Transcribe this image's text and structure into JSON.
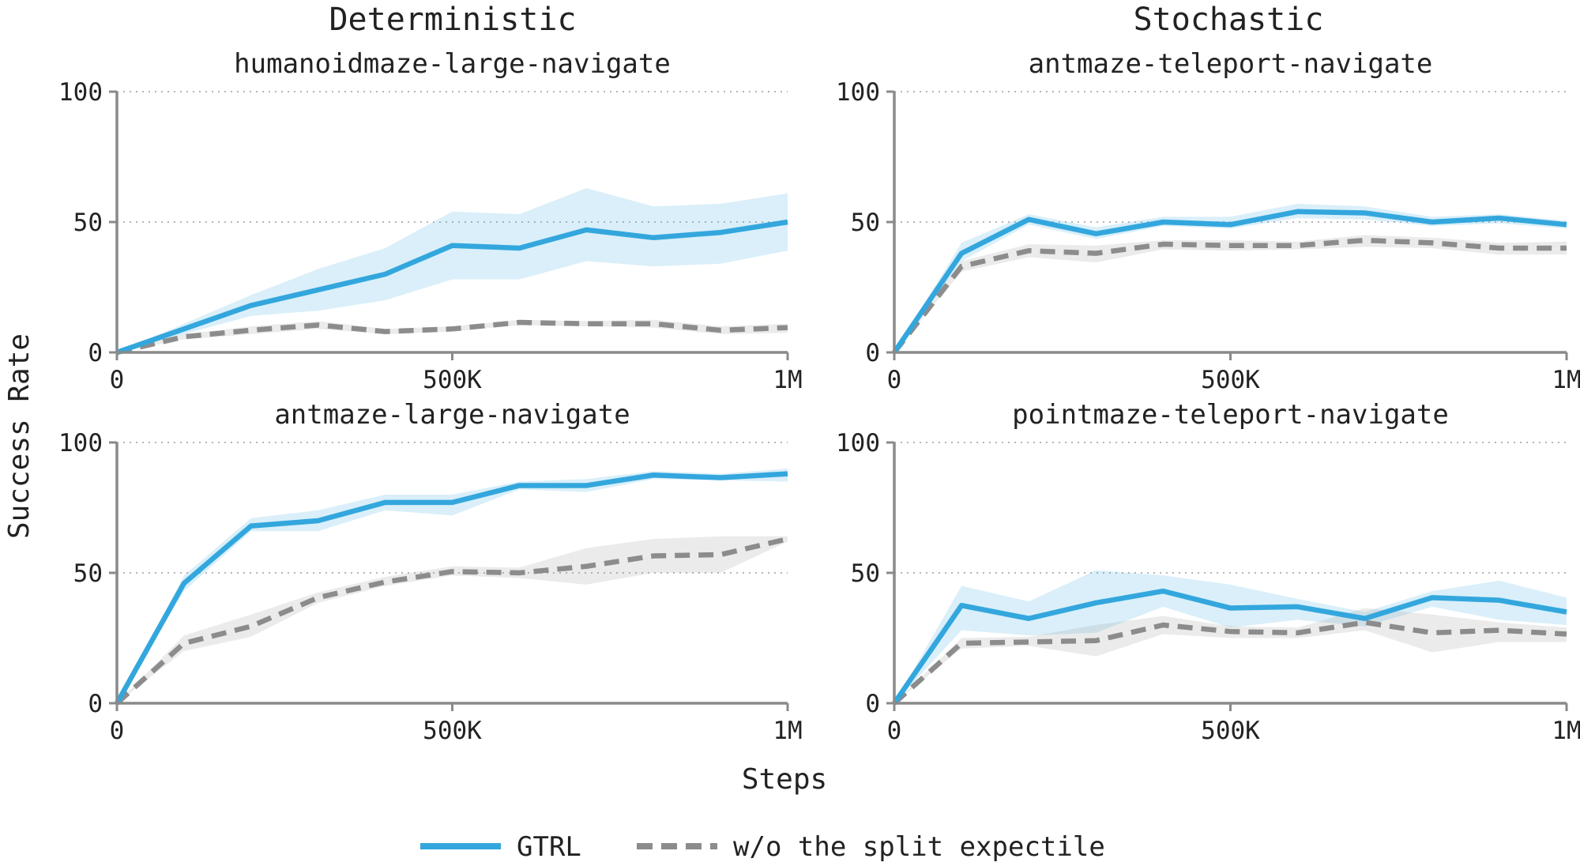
{
  "figure": {
    "column_titles": [
      "Deterministic",
      "Stochastic"
    ],
    "xlabel": "Steps",
    "ylabel": "Success Rate"
  },
  "legend": [
    {
      "name": "GTRL",
      "color": "#33a7dd",
      "style": "solid"
    },
    {
      "name": "w/o the split expectile",
      "color": "#8c8c8c",
      "style": "dashed"
    }
  ],
  "chart_data": [
    {
      "type": "line",
      "title": "humanoidmaze-large-navigate",
      "x": [
        0,
        100000,
        200000,
        300000,
        400000,
        500000,
        600000,
        700000,
        800000,
        900000,
        1000000
      ],
      "xlim": [
        0,
        1000000
      ],
      "ylim": [
        0,
        100
      ],
      "xticks": [
        0,
        500000,
        1000000
      ],
      "xtick_labels": [
        "0",
        "500K",
        "1M"
      ],
      "yticks": [
        0,
        50,
        100
      ],
      "ytick_labels": [
        "0",
        "50",
        "100"
      ],
      "grid": "horizontal dotted",
      "series": [
        {
          "name": "GTRL",
          "values": [
            0,
            9,
            18,
            24,
            30,
            41,
            40,
            47,
            44,
            46,
            50
          ],
          "lower": [
            0,
            7,
            14,
            16,
            20,
            28,
            28,
            35,
            33,
            34,
            39
          ],
          "upper": [
            0,
            11,
            22,
            32,
            40,
            54,
            53,
            63,
            56,
            57,
            61
          ]
        },
        {
          "name": "w/o the split expectile",
          "values": [
            0,
            6,
            8.5,
            10.5,
            8,
            9,
            11.5,
            11,
            11,
            8.5,
            9.5
          ],
          "lower": [
            0,
            5,
            7,
            9,
            7,
            8,
            10.5,
            10,
            9.5,
            7,
            7.5
          ],
          "upper": [
            0,
            7,
            10,
            12,
            9,
            10,
            12.5,
            12,
            12.5,
            10,
            11
          ]
        }
      ]
    },
    {
      "type": "line",
      "title": "antmaze-teleport-navigate",
      "x": [
        0,
        100000,
        200000,
        300000,
        400000,
        500000,
        600000,
        700000,
        800000,
        900000,
        1000000
      ],
      "xlim": [
        0,
        1000000
      ],
      "ylim": [
        0,
        100
      ],
      "xticks": [
        0,
        500000,
        1000000
      ],
      "xtick_labels": [
        "0",
        "500K",
        "1M"
      ],
      "yticks": [
        0,
        50,
        100
      ],
      "ytick_labels": [
        "0",
        "50",
        "100"
      ],
      "grid": "horizontal dotted",
      "series": [
        {
          "name": "GTRL",
          "values": [
            0,
            38,
            51,
            45.5,
            50,
            49,
            54,
            53.5,
            50,
            51.5,
            49
          ],
          "lower": [
            0,
            35,
            49,
            43.5,
            48.5,
            47.5,
            51.5,
            51,
            48.5,
            49.5,
            47.5
          ],
          "upper": [
            0,
            42,
            53,
            48,
            52,
            52,
            57,
            56,
            52,
            53,
            50.5
          ]
        },
        {
          "name": "w/o the split expectile",
          "values": [
            0,
            33,
            39,
            38,
            41.5,
            41,
            41,
            43,
            42,
            40,
            40
          ],
          "lower": [
            0,
            31,
            36.5,
            34.5,
            39.5,
            39,
            39.5,
            40.5,
            40,
            37.5,
            37.5
          ],
          "upper": [
            0,
            35,
            41.5,
            41,
            43,
            43,
            42.5,
            45,
            44,
            42,
            42.5
          ]
        }
      ]
    },
    {
      "type": "line",
      "title": "antmaze-large-navigate",
      "x": [
        0,
        100000,
        200000,
        300000,
        400000,
        500000,
        600000,
        700000,
        800000,
        900000,
        1000000
      ],
      "xlim": [
        0,
        1000000
      ],
      "ylim": [
        0,
        100
      ],
      "xticks": [
        0,
        500000,
        1000000
      ],
      "xtick_labels": [
        "0",
        "500K",
        "1M"
      ],
      "yticks": [
        0,
        50,
        100
      ],
      "ytick_labels": [
        "0",
        "50",
        "100"
      ],
      "grid": "horizontal dotted",
      "series": [
        {
          "name": "GTRL",
          "values": [
            0,
            46,
            68,
            70,
            77,
            77,
            83.5,
            83.5,
            87.5,
            86.5,
            88
          ],
          "lower": [
            0,
            43,
            66,
            66,
            74,
            72,
            82,
            81,
            86,
            85.5,
            85
          ],
          "upper": [
            0,
            49,
            71,
            74,
            80,
            80,
            85,
            86,
            89,
            88,
            90
          ]
        },
        {
          "name": "w/o the split expectile",
          "values": [
            0,
            23,
            29.5,
            40.5,
            46.5,
            50.5,
            50,
            52.5,
            56.5,
            57,
            63
          ],
          "lower": [
            0,
            20,
            25.5,
            38.5,
            45,
            49,
            48,
            45.5,
            50,
            50,
            62
          ],
          "upper": [
            0,
            26,
            34,
            42.5,
            48.5,
            52.5,
            52,
            59.5,
            63,
            64,
            64
          ]
        }
      ]
    },
    {
      "type": "line",
      "title": "pointmaze-teleport-navigate",
      "x": [
        0,
        100000,
        200000,
        300000,
        400000,
        500000,
        600000,
        700000,
        800000,
        900000,
        1000000
      ],
      "xlim": [
        0,
        1000000
      ],
      "ylim": [
        0,
        100
      ],
      "xticks": [
        0,
        500000,
        1000000
      ],
      "xtick_labels": [
        "0",
        "500K",
        "1M"
      ],
      "yticks": [
        0,
        50,
        100
      ],
      "ytick_labels": [
        "0",
        "50",
        "100"
      ],
      "grid": "horizontal dotted",
      "series": [
        {
          "name": "GTRL",
          "values": [
            0,
            37.5,
            32.5,
            38.5,
            43,
            36.5,
            37,
            32.5,
            40.5,
            39.5,
            35
          ],
          "lower": [
            0,
            28,
            26,
            27,
            37,
            29,
            32,
            29.5,
            37,
            32,
            30
          ],
          "upper": [
            0,
            45,
            39,
            51,
            49,
            45.5,
            40,
            35,
            43,
            47,
            40.5
          ]
        },
        {
          "name": "w/o the split expectile",
          "values": [
            0,
            23,
            23.5,
            24,
            30,
            27.5,
            27,
            31,
            27,
            28,
            26.5
          ],
          "lower": [
            0,
            21,
            22,
            18,
            26.5,
            25,
            25,
            28,
            19.5,
            23.5,
            23.5
          ],
          "upper": [
            0,
            25,
            25.5,
            30,
            33.5,
            29.5,
            29,
            36.5,
            34,
            31,
            29
          ]
        }
      ]
    }
  ]
}
